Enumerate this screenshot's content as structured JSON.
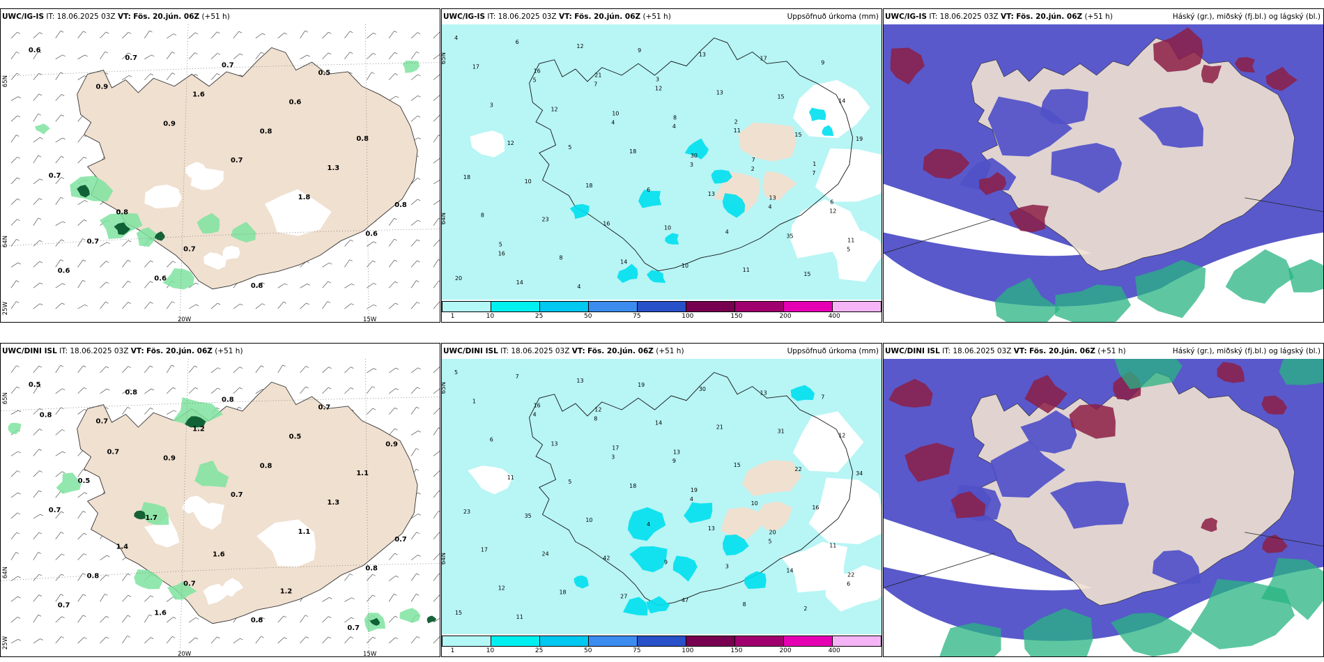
{
  "panels": [
    {
      "id": "p1",
      "model": "UWC/IG-IS",
      "it_label": "IT:",
      "it_value": "18.06.2025 03Z",
      "vt_label": "VT:",
      "vt_value": "Fös. 20.jún. 06Z",
      "lead": "(+51 h)",
      "right_label": "",
      "axis": {
        "lat_a": "65N",
        "lat_b": "64N",
        "lon_a": "20W",
        "lon_b": "15W",
        "lon_c": "25W"
      },
      "values": [
        "0.6",
        "0.9",
        "0.9",
        "0.7",
        "1.8",
        "0.6",
        "0.6",
        "0.7",
        "1.6",
        "0.8",
        "1.3",
        "0.8",
        "0.7",
        "0.6",
        "0.7",
        "0.6",
        "0.8",
        "0.7",
        "0.8",
        "0.7",
        "0.8",
        "0.5"
      ]
    },
    {
      "id": "p2",
      "model": "UWC/IG-IS",
      "it_label": "IT:",
      "it_value": "18.06.2025 03Z",
      "vt_label": "VT:",
      "vt_value": "Fös. 20.jún. 06Z",
      "lead": "(+51 h)",
      "right_label": "Uppsöfnuð úrkoma (mm)",
      "axis": {
        "lat_a": "65N",
        "lat_b": "64N"
      },
      "values": [
        "4",
        "5",
        "4",
        "3",
        "4",
        "5",
        "6",
        "7",
        "4",
        "2",
        "12",
        "16",
        "12",
        "12",
        "11",
        "7",
        "8",
        "8",
        "9",
        "13",
        "15",
        "18",
        "23",
        "14",
        "13",
        "15",
        "19",
        "10",
        "16",
        "10",
        "17",
        "14",
        "12",
        "18",
        "10",
        "11",
        "9",
        "3",
        "5",
        "6",
        "4",
        "15",
        "17",
        "12",
        "18",
        "13",
        "35",
        "20",
        "16",
        "10",
        "30",
        "13",
        "11",
        "14",
        "21",
        "8",
        "7",
        "6",
        "5",
        "4",
        "3",
        "2",
        "1"
      ]
    },
    {
      "id": "p3",
      "model": "UWC/IG-IS",
      "it_label": "IT:",
      "it_value": "18.06.2025 03Z",
      "vt_label": "VT:",
      "vt_value": "Fös. 20.jún. 06Z",
      "lead": "(+51 h)",
      "right_label": "Háský (gr.), miðský (fj.bl.) og lágský (bl.)",
      "axis": {},
      "values": []
    },
    {
      "id": "p4",
      "model": "UWC/DINI ISL",
      "it_label": "IT:",
      "it_value": "18.06.2025 03Z",
      "vt_label": "VT:",
      "vt_value": "Fös. 20.jún. 06Z",
      "lead": "(+51 h)",
      "right_label": "",
      "axis": {
        "lat_a": "65N",
        "lat_b": "64N",
        "lon_a": "20W",
        "lon_b": "15W",
        "lon_c": "25W"
      },
      "values": [
        "0.5",
        "0.7",
        "0.9",
        "0.7",
        "1.1",
        "0.8",
        "0.7",
        "0.8",
        "1.2",
        "0.8",
        "1.3",
        "0.7",
        "0.8",
        "1.6",
        "0.8",
        "0.5",
        "1.1",
        "0.7",
        "1.4",
        "0.7",
        "0.8",
        "0.7",
        "0.9",
        "0.5",
        "1.7",
        "1.6",
        "1.2",
        "0.7",
        "0.8",
        "0.7"
      ]
    },
    {
      "id": "p5",
      "model": "UWC/DINI ISL",
      "it_label": "IT:",
      "it_value": "18.06.2025 03Z",
      "vt_label": "VT:",
      "vt_value": "Fös. 20.jún. 06Z",
      "lead": "(+51 h)",
      "right_label": "Uppsöfnuð úrkoma (mm)",
      "axis": {
        "lat_a": "65N",
        "lat_b": "64N"
      },
      "values": [
        "5",
        "4",
        "3",
        "4",
        "5",
        "6",
        "7",
        "8",
        "9",
        "10",
        "11",
        "12",
        "13",
        "14",
        "15",
        "16",
        "17",
        "18",
        "19",
        "21",
        "22",
        "23",
        "24",
        "27",
        "30",
        "31",
        "34",
        "35",
        "42",
        "47",
        "13",
        "12",
        "11",
        "10",
        "9",
        "8",
        "7",
        "6",
        "5",
        "4",
        "3",
        "2",
        "1",
        "13",
        "18",
        "13",
        "14",
        "15",
        "16",
        "17",
        "19",
        "20",
        "22",
        "11",
        "12",
        "13"
      ]
    },
    {
      "id": "p6",
      "model": "UWC/DINI ISL",
      "it_label": "IT:",
      "it_value": "18.06.2025 03Z",
      "vt_label": "VT:",
      "vt_value": "Fös. 20.jún. 06Z",
      "lead": "(+51 h)",
      "right_label": "Háský (gr.), miðský (fj.bl.) og lágský (bl.)",
      "axis": {},
      "values": []
    }
  ],
  "colorbar": {
    "ticks": [
      "1",
      "10",
      "25",
      "50",
      "75",
      "100",
      "150",
      "200",
      "400"
    ],
    "colors": [
      "#b4f7f7",
      "#00f0f0",
      "#00c8f0",
      "#3c8cf0",
      "#2850c8",
      "#780050",
      "#a0006e",
      "#e600b4",
      "#f5b4f5"
    ]
  },
  "colors": {
    "land": "#f0e0d0",
    "precip_light": "#b8f5f5",
    "wind_green": "#7fe3a0",
    "dark_green": "#0a5a2e",
    "low_cloud": "#5050c8",
    "mid_cloud": "#8c1e46",
    "high_cloud": "#28b482"
  }
}
